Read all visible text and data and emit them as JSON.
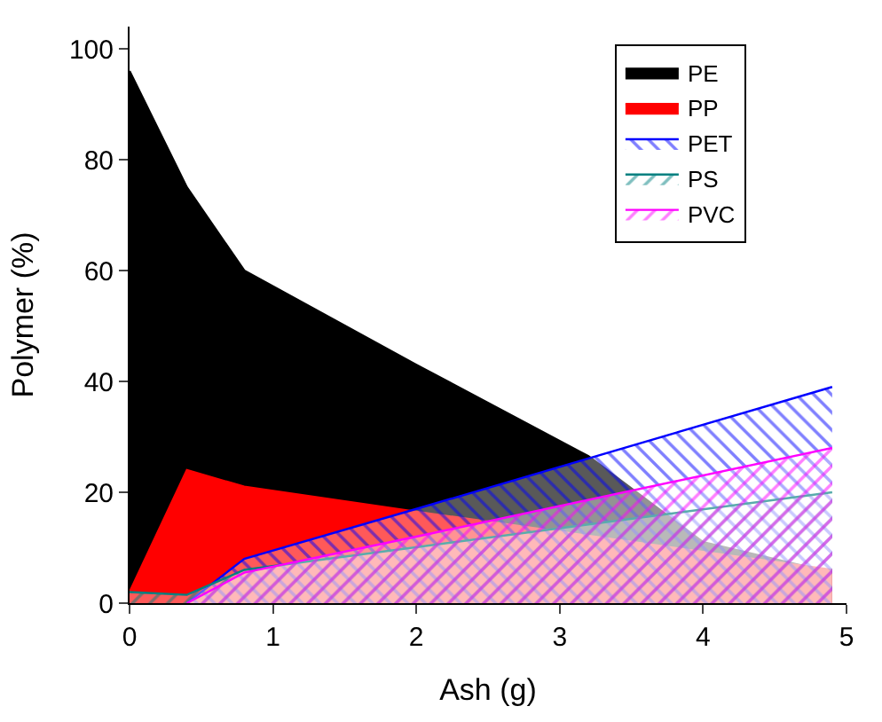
{
  "chart_data": {
    "type": "area",
    "xlabel": "Ash (g)",
    "ylabel": "Polymer (%)",
    "xlim": [
      0,
      5
    ],
    "xticks": [
      0,
      1,
      2,
      3,
      4,
      5
    ],
    "ylim": [
      0,
      104
    ],
    "yticks": [
      0,
      20,
      40,
      60,
      80,
      100
    ],
    "legend": "top right",
    "series": [
      {
        "name": "PE",
        "color": "#000000",
        "x": [
          0,
          0.4,
          0.8,
          2,
          3.2,
          4,
          4.9
        ],
        "values": [
          96,
          75,
          60,
          43,
          26.5,
          11,
          5.5
        ]
      },
      {
        "name": "PP",
        "color": "#ff0000",
        "x": [
          0,
          0.4,
          0.8,
          2,
          4.9
        ],
        "values": [
          2,
          24,
          21,
          16.5,
          6
        ]
      },
      {
        "name": "PET",
        "color": "#0000ff",
        "x": [
          0.4,
          0.8,
          2,
          4.9
        ],
        "values": [
          0,
          8,
          17,
          39
        ]
      },
      {
        "name": "PS",
        "color": "#008080",
        "x": [
          0,
          0.4,
          0.8,
          4.9
        ],
        "values": [
          2,
          1.5,
          6,
          20
        ]
      },
      {
        "name": "PVC",
        "color": "#ff00ff",
        "x": [
          0.4,
          0.8,
          2,
          4.9
        ],
        "values": [
          0,
          5.5,
          12,
          28
        ]
      }
    ]
  }
}
